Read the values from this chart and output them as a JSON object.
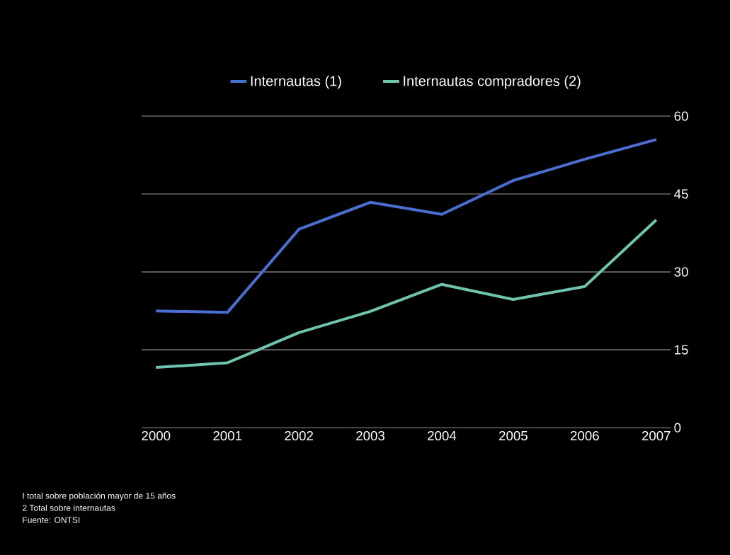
{
  "chart_data": {
    "type": "line",
    "categories": [
      "2000",
      "2001",
      "2002",
      "2003",
      "2004",
      "2005",
      "2006",
      "2007"
    ],
    "series": [
      {
        "name": "Internautas (1)",
        "color": "#4a6fd0",
        "values": [
          22.5,
          22.2,
          38.2,
          43.4,
          41.1,
          47.6,
          51.7,
          55.5
        ]
      },
      {
        "name": "Internautas compradores (2)",
        "color": "#6fc4b0",
        "values": [
          11.6,
          12.5,
          18.3,
          22.4,
          27.6,
          24.7,
          27.2,
          40
        ]
      }
    ],
    "ylim": [
      0,
      60
    ],
    "yticks": [
      0,
      15,
      30,
      45,
      60
    ],
    "grid": "y",
    "legend": "top",
    "marker": "none",
    "line_style": "solid",
    "annotations": [
      "I total sobre población mayor de 15 años",
      "2 Total sobre internautas",
      "Fuente: ONTSI"
    ]
  }
}
